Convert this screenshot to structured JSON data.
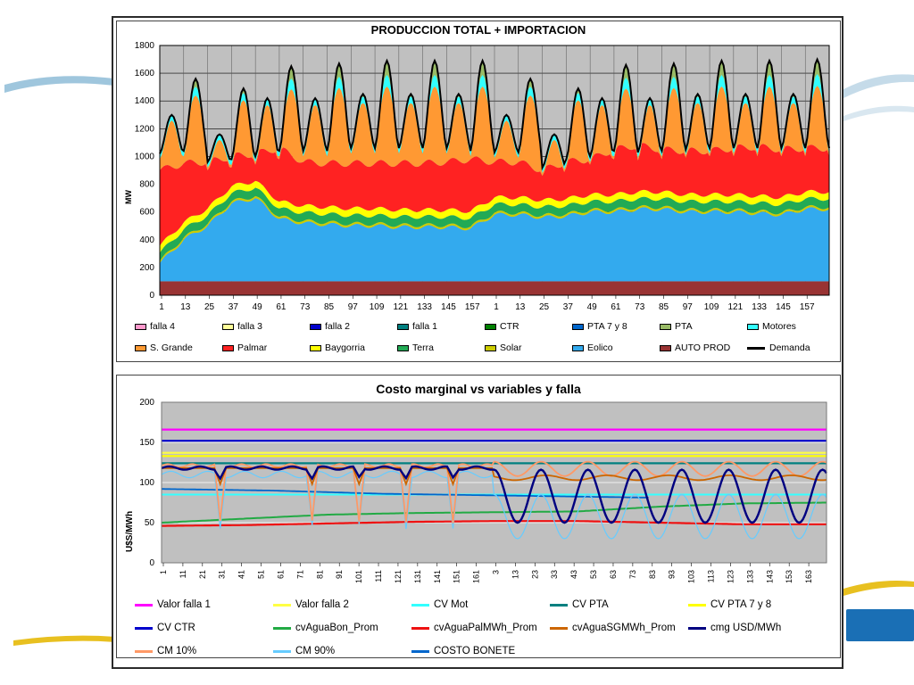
{
  "colors": {
    "falla4": "#ff99cc",
    "falla3": "#ffff99",
    "falla2": "#0000cc",
    "falla1": "#008080",
    "ctr": "#008000",
    "pta78": "#0066cc",
    "pta": "#99bb66",
    "motores": "#33ffff",
    "s_grande": "#ff9933",
    "palmar": "#ff2222",
    "baygorria": "#ffff00",
    "terra": "#22aa55",
    "solar": "#cccc00",
    "eolico": "#33aaee",
    "auto_prod": "#993333",
    "demanda": "#000000",
    "plot_bg": "#c0c0c0"
  },
  "chart_data": [
    {
      "type": "area",
      "title": "PRODUCCION TOTAL + IMPORTACION",
      "ylabel": "MW",
      "ylim": [
        0,
        1800
      ],
      "yticks": [
        "0",
        "200",
        "400",
        "600",
        "800",
        "1000",
        "1200",
        "1400",
        "1600",
        "1800"
      ],
      "xticks": [
        "1",
        "13",
        "25",
        "37",
        "49",
        "61",
        "73",
        "85",
        "97",
        "109",
        "121",
        "133",
        "145",
        "157",
        "1",
        "13",
        "25",
        "37",
        "49",
        "61",
        "73",
        "85",
        "97",
        "109",
        "121",
        "133",
        "145",
        "157"
      ],
      "legend": [
        {
          "key": "falla4",
          "label": "falla 4",
          "style": "box"
        },
        {
          "key": "falla3",
          "label": "falla 3",
          "style": "box"
        },
        {
          "key": "falla2",
          "label": "falla 2",
          "style": "box"
        },
        {
          "key": "falla1",
          "label": "falla 1",
          "style": "box"
        },
        {
          "key": "ctr",
          "label": "CTR",
          "style": "box"
        },
        {
          "key": "pta78",
          "label": "PTA 7 y 8",
          "style": "box"
        },
        {
          "key": "pta",
          "label": "PTA",
          "style": "box"
        },
        {
          "key": "motores",
          "label": "Motores",
          "style": "box"
        },
        {
          "key": "s_grande",
          "label": "S. Grande",
          "style": "box"
        },
        {
          "key": "palmar",
          "label": "Palmar",
          "style": "box"
        },
        {
          "key": "baygorria",
          "label": "Baygorria",
          "style": "box"
        },
        {
          "key": "terra",
          "label": "Terra",
          "style": "box"
        },
        {
          "key": "solar",
          "label": "Solar",
          "style": "box"
        },
        {
          "key": "eolico",
          "label": "Eolico",
          "style": "box"
        },
        {
          "key": "auto_prod",
          "label": "AUTO PROD",
          "style": "box"
        },
        {
          "key": "demanda",
          "label": "Demanda",
          "style": "line"
        }
      ],
      "days": 28,
      "hours_per_day": 12,
      "day_peak_mw": [
        1300,
        1560,
        1160,
        1490,
        1420,
        1650,
        1420,
        1670,
        1450,
        1690,
        1450,
        1690,
        1450,
        1690,
        1300,
        1560,
        1160,
        1490,
        1420,
        1660,
        1420,
        1670,
        1450,
        1690,
        1450,
        1690,
        1450,
        1700
      ],
      "day_min_mw": [
        1020,
        1040,
        960,
        980,
        1000,
        1040,
        1040,
        1040,
        1060,
        1060,
        1060,
        1060,
        1060,
        1040,
        1030,
        1030,
        920,
        980,
        1000,
        1040,
        1030,
        1040,
        1050,
        1060,
        1060,
        1060,
        1060,
        1060
      ],
      "auto_prod_mw": 100,
      "eolico_mw": [
        130,
        300,
        400,
        560,
        600,
        450,
        420,
        410,
        400,
        400,
        390,
        390,
        390,
        380,
        480,
        480,
        460,
        470,
        500,
        500,
        520,
        520,
        500,
        500,
        500,
        490,
        480,
        520
      ],
      "palmar_top_mw": [
        900,
        950,
        960,
        1000,
        1020,
        1060,
        960,
        950,
        950,
        950,
        950,
        950,
        960,
        980,
        960,
        960,
        900,
        960,
        980,
        1050,
        1080,
        1050,
        1040,
        1040,
        1060,
        1070,
        1050,
        1060
      ]
    },
    {
      "type": "line",
      "title": "Costo marginal vs variables y falla",
      "ylabel": "U$S/MWh",
      "ylim": [
        0,
        200
      ],
      "yticks": [
        "0",
        "50",
        "100",
        "150",
        "200"
      ],
      "xticks": [
        "1",
        "11",
        "21",
        "31",
        "41",
        "51",
        "61",
        "71",
        "81",
        "91",
        "101",
        "111",
        "121",
        "131",
        "141",
        "151",
        "161",
        "3",
        "13",
        "23",
        "33",
        "43",
        "53",
        "63",
        "73",
        "83",
        "93",
        "103",
        "113",
        "123",
        "133",
        "143",
        "153",
        "163"
      ],
      "series": [
        {
          "key": "valor_falla_1",
          "name": "Valor falla 1",
          "color": "#ff00ff",
          "values": [
            166,
            166
          ]
        },
        {
          "key": "valor_falla_2",
          "name": "Valor falla 2",
          "color": "#ffff44",
          "values": [
            137,
            137
          ]
        },
        {
          "key": "cv_mot",
          "name": "CV Mot",
          "color": "#33ffff",
          "values": [
            85,
            85
          ]
        },
        {
          "key": "cv_pta",
          "name": "CV PTA",
          "color": "#008080",
          "values": [
            124,
            124
          ]
        },
        {
          "key": "cv_pta_7_y_8",
          "name": "CV PTA 7 y 8",
          "color": "#ffff00",
          "values": [
            133,
            133
          ]
        },
        {
          "key": "cv_ctr",
          "name": "CV CTR",
          "color": "#0000cc",
          "values": [
            152,
            152
          ]
        },
        {
          "key": "cvaguabon_prom",
          "name": "cvAguaBon_Prom",
          "color": "#22aa44",
          "values": [
            50,
            55,
            60,
            62,
            63,
            64,
            70,
            74,
            75
          ]
        },
        {
          "key": "cvaguapalmwh_prom",
          "name": "cvAguaPalMWh_Prom",
          "color": "#ee1111",
          "values": [
            46,
            47,
            49,
            51,
            52,
            52,
            50,
            48,
            48
          ]
        },
        {
          "key": "cvaguasgmwh_prom",
          "name": "cvAguaSGMWh_Prom",
          "color": "#cc6600",
          "values": [
            118,
            118,
            117,
            117,
            118,
            118,
            106,
            108,
            108
          ]
        },
        {
          "key": "cmg_usd_mwh",
          "name": "cmg USD/MWh",
          "color": "#000080",
          "values": [
            118,
            118,
            118,
            118,
            118,
            118,
            120,
            50,
            116
          ]
        },
        {
          "key": "cm_10",
          "name": "CM 10%",
          "color": "#ff9966",
          "values": [
            120,
            120,
            120,
            120,
            120,
            120,
            122,
            108,
            125
          ]
        },
        {
          "key": "cm_90",
          "name": "CM 90%",
          "color": "#66ccff",
          "values": [
            110,
            110,
            110,
            110,
            110,
            110,
            110,
            30,
            85
          ]
        },
        {
          "key": "costo_bonete",
          "name": "COSTO BONETE",
          "color": "#0066cc",
          "values": [
            92,
            90,
            86,
            84,
            82,
            80,
            80
          ]
        }
      ]
    }
  ]
}
